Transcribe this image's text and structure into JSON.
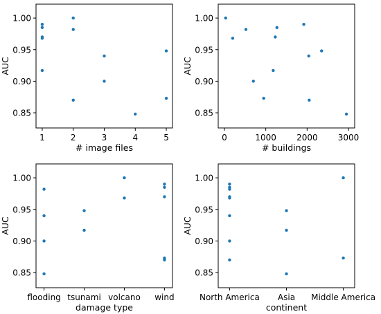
{
  "colors": {
    "points": "#1f77b4"
  },
  "chart_data": [
    {
      "type": "scatter",
      "xlabel": "# image files",
      "ylabel": "AUC",
      "xlim": [
        0.8,
        5.2
      ],
      "ylim": [
        0.826,
        1.022
      ],
      "xticks": [
        1,
        2,
        3,
        4,
        5
      ],
      "xtick_labels": [
        "1",
        "2",
        "3",
        "4",
        "5"
      ],
      "yticks": [
        0.85,
        0.9,
        0.95,
        1.0
      ],
      "ytick_labels": [
        "0.85",
        "0.90",
        "0.95",
        "1.00"
      ],
      "grid": false,
      "points": [
        {
          "x": 1,
          "y": 0.99
        },
        {
          "x": 1,
          "y": 0.985
        },
        {
          "x": 1,
          "y": 0.97
        },
        {
          "x": 1,
          "y": 0.968
        },
        {
          "x": 1,
          "y": 0.917
        },
        {
          "x": 2,
          "y": 1.0
        },
        {
          "x": 2,
          "y": 0.982
        },
        {
          "x": 2,
          "y": 0.87
        },
        {
          "x": 3,
          "y": 0.94
        },
        {
          "x": 3,
          "y": 0.9
        },
        {
          "x": 4,
          "y": 0.848
        },
        {
          "x": 5,
          "y": 0.948
        },
        {
          "x": 5,
          "y": 0.873
        }
      ]
    },
    {
      "type": "scatter",
      "xlabel": "# buildings",
      "ylabel": "AUC",
      "xlim": [
        -150,
        3150
      ],
      "ylim": [
        0.826,
        1.022
      ],
      "xticks": [
        0,
        1000,
        2000,
        3000
      ],
      "xtick_labels": [
        "0",
        "1000",
        "2000",
        "3000"
      ],
      "yticks": [
        0.85,
        0.9,
        0.95,
        1.0
      ],
      "ytick_labels": [
        "0.85",
        "0.90",
        "0.95",
        "1.00"
      ],
      "grid": false,
      "points": [
        {
          "x": 30,
          "y": 1.0
        },
        {
          "x": 200,
          "y": 0.968
        },
        {
          "x": 520,
          "y": 0.982
        },
        {
          "x": 700,
          "y": 0.9
        },
        {
          "x": 950,
          "y": 0.873
        },
        {
          "x": 1180,
          "y": 0.917
        },
        {
          "x": 1230,
          "y": 0.97
        },
        {
          "x": 1270,
          "y": 0.985
        },
        {
          "x": 1920,
          "y": 0.99
        },
        {
          "x": 2040,
          "y": 0.94
        },
        {
          "x": 2050,
          "y": 0.87
        },
        {
          "x": 2350,
          "y": 0.948
        },
        {
          "x": 2950,
          "y": 0.848
        }
      ]
    },
    {
      "type": "scatter",
      "xlabel": "damage type",
      "ylabel": "AUC",
      "xlim": [
        -0.2,
        3.2
      ],
      "ylim": [
        0.826,
        1.022
      ],
      "xticks": [
        0,
        1,
        2,
        3
      ],
      "xtick_labels": [
        "flooding",
        "tsunami",
        "volcano",
        "wind"
      ],
      "yticks": [
        0.85,
        0.9,
        0.95,
        1.0
      ],
      "ytick_labels": [
        "0.85",
        "0.90",
        "0.95",
        "1.00"
      ],
      "grid": false,
      "points": [
        {
          "x": 0,
          "y": 0.982
        },
        {
          "x": 0,
          "y": 0.94
        },
        {
          "x": 0,
          "y": 0.9
        },
        {
          "x": 0,
          "y": 0.848
        },
        {
          "x": 1,
          "y": 0.948
        },
        {
          "x": 1,
          "y": 0.917
        },
        {
          "x": 2,
          "y": 1.0
        },
        {
          "x": 2,
          "y": 0.968
        },
        {
          "x": 3,
          "y": 0.99
        },
        {
          "x": 3,
          "y": 0.985
        },
        {
          "x": 3,
          "y": 0.97
        },
        {
          "x": 3,
          "y": 0.873
        },
        {
          "x": 3,
          "y": 0.87
        }
      ]
    },
    {
      "type": "scatter",
      "xlabel": "continent",
      "ylabel": "AUC",
      "xlim": [
        -0.2,
        2.2
      ],
      "ylim": [
        0.826,
        1.022
      ],
      "xticks": [
        0,
        1,
        2
      ],
      "xtick_labels": [
        "North America",
        "Asia",
        "Middle America"
      ],
      "yticks": [
        0.85,
        0.9,
        0.95,
        1.0
      ],
      "ytick_labels": [
        "0.85",
        "0.90",
        "0.95",
        "1.00"
      ],
      "grid": false,
      "points": [
        {
          "x": 0,
          "y": 0.99
        },
        {
          "x": 0,
          "y": 0.985
        },
        {
          "x": 0,
          "y": 0.982
        },
        {
          "x": 0,
          "y": 0.97
        },
        {
          "x": 0,
          "y": 0.968
        },
        {
          "x": 0,
          "y": 0.94
        },
        {
          "x": 0,
          "y": 0.9
        },
        {
          "x": 0,
          "y": 0.87
        },
        {
          "x": 1,
          "y": 0.948
        },
        {
          "x": 1,
          "y": 0.917
        },
        {
          "x": 1,
          "y": 0.848
        },
        {
          "x": 2,
          "y": 1.0
        },
        {
          "x": 2,
          "y": 0.873
        }
      ]
    }
  ]
}
